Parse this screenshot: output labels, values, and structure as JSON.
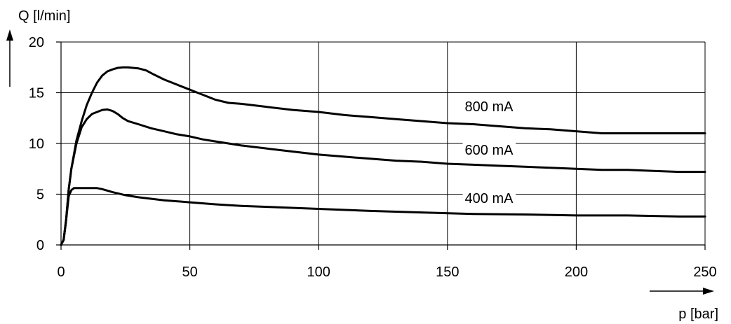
{
  "chart_data": {
    "type": "line",
    "title": "",
    "ylabel": "Q [l/min]",
    "xlabel": "p [bar]",
    "xlim": [
      0,
      250
    ],
    "ylim": [
      0,
      20
    ],
    "x_ticks": [
      0,
      50,
      100,
      150,
      200,
      250
    ],
    "y_ticks": [
      0,
      5,
      10,
      15,
      20
    ],
    "x_tick_labels": [
      "0",
      "50",
      "100",
      "150",
      "200",
      "250"
    ],
    "y_tick_labels": [
      "0",
      "5",
      "10",
      "15",
      "20"
    ],
    "grid": true,
    "series": [
      {
        "name": "800 mA",
        "x": [
          0,
          1,
          2,
          3,
          4,
          6,
          8,
          10,
          12,
          14,
          16,
          18,
          20,
          22,
          24,
          26,
          28,
          30,
          33,
          36,
          40,
          45,
          50,
          55,
          60,
          65,
          70,
          80,
          90,
          100,
          110,
          120,
          130,
          140,
          150,
          160,
          170,
          180,
          190,
          200,
          210,
          220,
          230,
          240,
          250
        ],
        "y": [
          0,
          0.5,
          2.5,
          5.5,
          7.5,
          10.3,
          12.2,
          13.8,
          15.0,
          16.0,
          16.7,
          17.1,
          17.3,
          17.45,
          17.5,
          17.5,
          17.45,
          17.4,
          17.2,
          16.8,
          16.3,
          15.8,
          15.3,
          14.8,
          14.3,
          14.0,
          13.9,
          13.6,
          13.3,
          13.1,
          12.8,
          12.6,
          12.4,
          12.2,
          12.0,
          11.9,
          11.7,
          11.5,
          11.4,
          11.2,
          11.0,
          11.0,
          11.0,
          11.0,
          11.0
        ]
      },
      {
        "name": "600 mA",
        "x": [
          0,
          1,
          2,
          3,
          4,
          6,
          8,
          10,
          12,
          14,
          16,
          18,
          20,
          22,
          24,
          26,
          30,
          35,
          40,
          45,
          50,
          55,
          60,
          70,
          80,
          90,
          100,
          110,
          120,
          130,
          140,
          150,
          160,
          170,
          180,
          190,
          200,
          210,
          220,
          230,
          240,
          250
        ],
        "y": [
          0,
          0.5,
          2.5,
          5.5,
          7.5,
          10.0,
          11.6,
          12.4,
          12.9,
          13.1,
          13.3,
          13.35,
          13.2,
          12.9,
          12.5,
          12.2,
          11.9,
          11.5,
          11.2,
          10.9,
          10.7,
          10.4,
          10.2,
          9.8,
          9.5,
          9.2,
          8.9,
          8.7,
          8.5,
          8.3,
          8.2,
          8.0,
          7.9,
          7.8,
          7.7,
          7.6,
          7.5,
          7.4,
          7.4,
          7.3,
          7.2,
          7.2
        ]
      },
      {
        "name": "400 mA",
        "x": [
          0,
          1,
          2,
          3,
          4,
          5,
          6,
          8,
          10,
          14,
          16,
          20,
          25,
          30,
          40,
          50,
          60,
          70,
          80,
          100,
          120,
          140,
          160,
          180,
          200,
          220,
          240,
          250
        ],
        "y": [
          0,
          0.5,
          2.5,
          4.8,
          5.4,
          5.6,
          5.6,
          5.6,
          5.6,
          5.6,
          5.5,
          5.2,
          4.9,
          4.7,
          4.4,
          4.2,
          4.0,
          3.85,
          3.75,
          3.55,
          3.35,
          3.2,
          3.05,
          3.0,
          2.9,
          2.9,
          2.8,
          2.8
        ]
      }
    ]
  }
}
